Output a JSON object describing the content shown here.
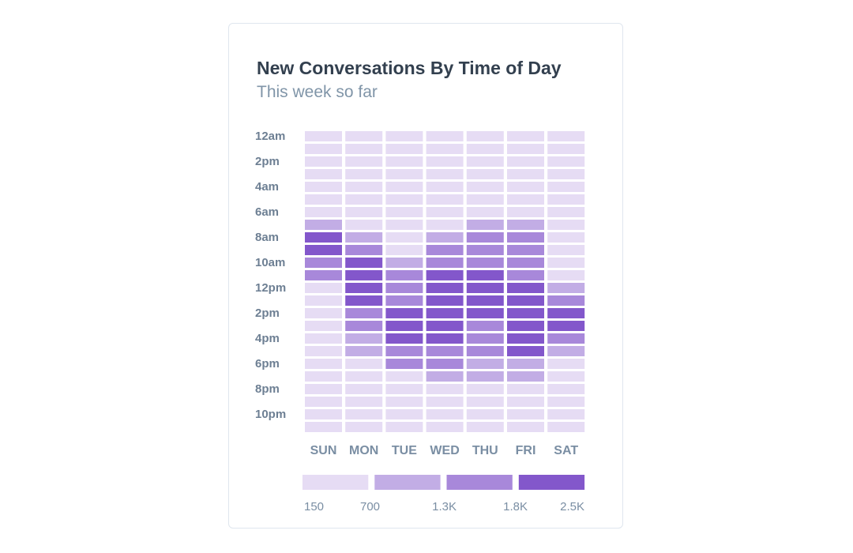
{
  "card": {
    "title": "New Conversations By Time of Day",
    "subtitle": "This week so far"
  },
  "chart_data": {
    "type": "heatmap",
    "x_categories": [
      "SUN",
      "MON",
      "TUE",
      "WED",
      "THU",
      "FRI",
      "SAT"
    ],
    "y_tick_labels": [
      "12am",
      "2pm",
      "4am",
      "6am",
      "8am",
      "10am",
      "12pm",
      "2pm",
      "4pm",
      "6pm",
      "8pm",
      "10pm"
    ],
    "rows_per_day": 24,
    "legend": {
      "labels": [
        "150",
        "700",
        "1.3K",
        "1.8K",
        "2.5K"
      ],
      "colors": [
        "#e6dcf4",
        "#c2ade5",
        "#a888da",
        "#8357cb"
      ]
    },
    "values": [
      [
        0,
        0,
        0,
        0,
        0,
        0,
        0
      ],
      [
        0,
        0,
        0,
        0,
        0,
        0,
        0
      ],
      [
        0,
        0,
        0,
        0,
        0,
        0,
        0
      ],
      [
        0,
        0,
        0,
        0,
        0,
        0,
        0
      ],
      [
        0,
        0,
        0,
        0,
        0,
        0,
        0
      ],
      [
        0,
        0,
        0,
        0,
        0,
        0,
        0
      ],
      [
        0,
        0,
        0,
        0,
        0,
        0,
        0
      ],
      [
        1,
        0,
        0,
        0,
        1,
        1,
        0
      ],
      [
        3,
        1,
        0,
        1,
        2,
        2,
        0
      ],
      [
        3,
        2,
        0,
        2,
        2,
        2,
        0
      ],
      [
        2,
        3,
        1,
        2,
        2,
        2,
        0
      ],
      [
        2,
        3,
        2,
        3,
        3,
        2,
        0
      ],
      [
        0,
        3,
        2,
        3,
        3,
        3,
        1
      ],
      [
        0,
        3,
        2,
        3,
        3,
        3,
        2
      ],
      [
        0,
        2,
        3,
        3,
        3,
        3,
        3
      ],
      [
        0,
        2,
        3,
        3,
        2,
        3,
        3
      ],
      [
        0,
        1,
        3,
        3,
        2,
        3,
        2
      ],
      [
        0,
        1,
        2,
        2,
        2,
        3,
        1
      ],
      [
        0,
        0,
        2,
        2,
        1,
        1,
        0
      ],
      [
        0,
        0,
        0,
        1,
        1,
        1,
        0
      ],
      [
        0,
        0,
        0,
        0,
        0,
        0,
        0
      ],
      [
        0,
        0,
        0,
        0,
        0,
        0,
        0
      ],
      [
        0,
        0,
        0,
        0,
        0,
        0,
        0
      ],
      [
        0,
        0,
        0,
        0,
        0,
        0,
        0
      ]
    ]
  }
}
